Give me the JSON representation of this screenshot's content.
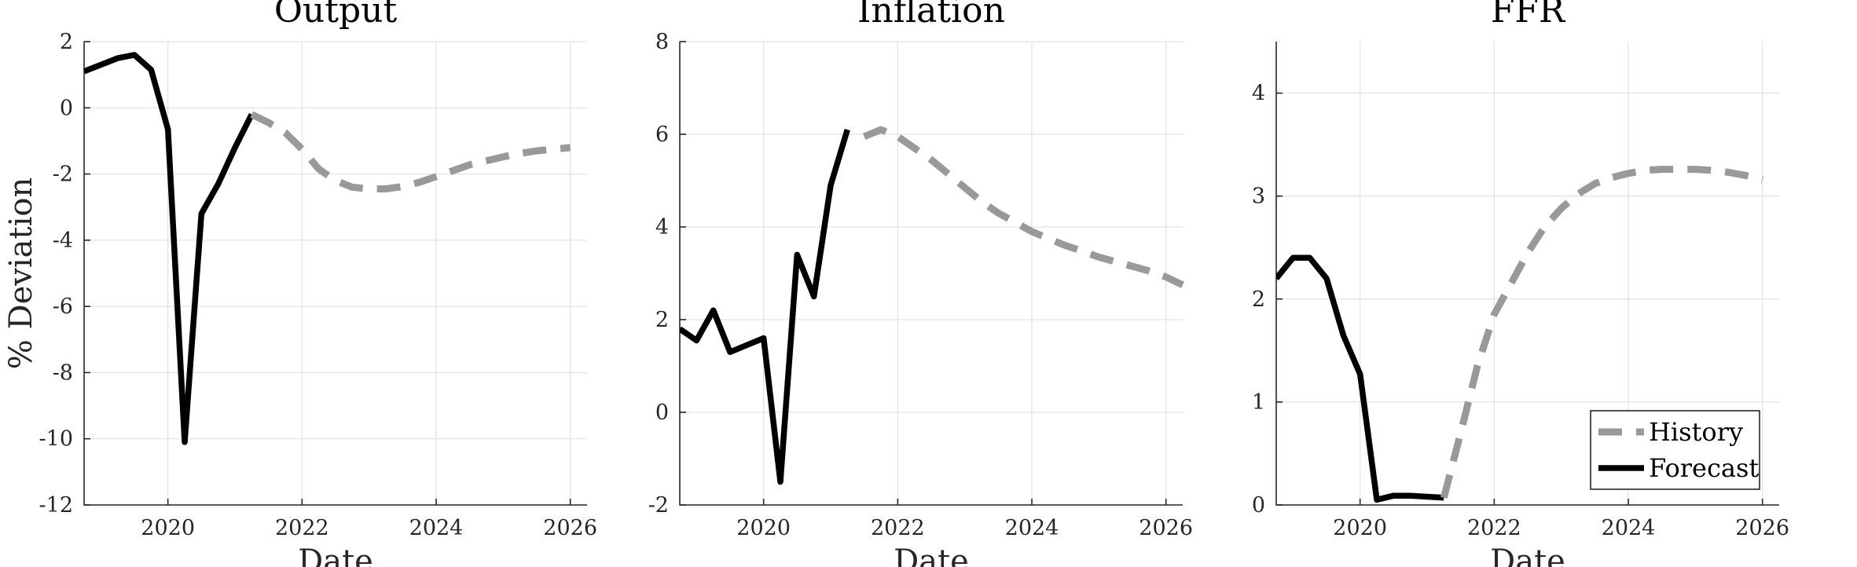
{
  "figure": {
    "ylabel": "% Deviation",
    "colors": {
      "history": "#999999",
      "forecast": "#000000",
      "grid": "#e3e3e3"
    },
    "legend": {
      "placement": "bottom-right of third panel",
      "entries": [
        {
          "key": "history",
          "label": "History"
        },
        {
          "key": "forecast",
          "label": "Forecast"
        }
      ]
    }
  },
  "chart_data": [
    {
      "type": "line",
      "title": "Output",
      "xlabel": "Date",
      "xlim": [
        2018.75,
        2026.25
      ],
      "ylim": [
        -12,
        2
      ],
      "xticks": [
        2020,
        2022,
        2024,
        2026
      ],
      "yticks": [
        -12,
        -10,
        -8,
        -6,
        -4,
        -2,
        0,
        2
      ],
      "grid": true,
      "series": [
        {
          "key": "forecast",
          "x": [
            2018.75,
            2019.0,
            2019.25,
            2019.5,
            2019.75,
            2020.0,
            2020.25,
            2020.5,
            2020.75,
            2021.0,
            2021.25
          ],
          "y": [
            1.1,
            1.3,
            1.5,
            1.6,
            1.15,
            -0.65,
            -10.1,
            -3.2,
            -2.3,
            -1.2,
            -0.2
          ]
        },
        {
          "key": "history",
          "x": [
            2021.25,
            2021.5,
            2021.75,
            2022.0,
            2022.25,
            2022.5,
            2022.75,
            2023.0,
            2023.25,
            2023.5,
            2023.75,
            2024.0,
            2024.25,
            2024.5,
            2024.75,
            2025.0,
            2025.25,
            2025.5,
            2025.75,
            2026.0
          ],
          "y": [
            -0.2,
            -0.45,
            -0.75,
            -1.25,
            -1.85,
            -2.2,
            -2.4,
            -2.45,
            -2.45,
            -2.38,
            -2.25,
            -2.08,
            -1.9,
            -1.72,
            -1.6,
            -1.48,
            -1.38,
            -1.3,
            -1.25,
            -1.2
          ]
        }
      ]
    },
    {
      "type": "line",
      "title": "Inflation",
      "xlabel": "Date",
      "xlim": [
        2018.75,
        2026.25
      ],
      "ylim": [
        -2,
        8
      ],
      "xticks": [
        2020,
        2022,
        2024,
        2026
      ],
      "yticks": [
        -2,
        0,
        2,
        4,
        6,
        8
      ],
      "grid": true,
      "series": [
        {
          "key": "forecast",
          "x": [
            2018.75,
            2019.0,
            2019.25,
            2019.5,
            2019.75,
            2020.0,
            2020.25,
            2020.5,
            2020.75,
            2021.0,
            2021.25
          ],
          "y": [
            1.8,
            1.55,
            2.2,
            1.3,
            1.45,
            1.6,
            -1.5,
            3.4,
            2.5,
            4.9,
            6.1
          ]
        },
        {
          "key": "history",
          "x": [
            2021.5,
            2021.75,
            2022.0,
            2022.25,
            2022.5,
            2022.75,
            2023.0,
            2023.25,
            2023.5,
            2023.75,
            2024.0,
            2024.25,
            2024.5,
            2024.75,
            2025.0,
            2025.25,
            2025.5,
            2025.75,
            2026.0,
            2026.25
          ],
          "y": [
            5.95,
            6.1,
            5.95,
            5.7,
            5.45,
            5.15,
            4.85,
            4.55,
            4.3,
            4.1,
            3.9,
            3.75,
            3.6,
            3.48,
            3.35,
            3.25,
            3.15,
            3.05,
            2.92,
            2.75
          ]
        }
      ]
    },
    {
      "type": "line",
      "title": "FFR",
      "xlabel": "Date",
      "xlim": [
        2018.75,
        2026.25
      ],
      "ylim": [
        0,
        4.5
      ],
      "xticks": [
        2020,
        2022,
        2024,
        2026
      ],
      "yticks": [
        0,
        1,
        2,
        3,
        4
      ],
      "grid": true,
      "series": [
        {
          "key": "forecast",
          "x": [
            2018.75,
            2019.0,
            2019.25,
            2019.5,
            2019.75,
            2020.0,
            2020.25,
            2020.5,
            2020.75,
            2021.0,
            2021.25
          ],
          "y": [
            2.2,
            2.4,
            2.4,
            2.2,
            1.65,
            1.27,
            0.05,
            0.09,
            0.09,
            0.08,
            0.07
          ]
        },
        {
          "key": "history",
          "x": [
            2021.25,
            2021.5,
            2021.75,
            2022.0,
            2022.25,
            2022.5,
            2022.75,
            2023.0,
            2023.25,
            2023.5,
            2023.75,
            2024.0,
            2024.25,
            2024.5,
            2024.75,
            2025.0,
            2025.25,
            2025.5,
            2025.75,
            2026.0
          ],
          "y": [
            0.07,
            0.7,
            1.35,
            1.85,
            2.15,
            2.45,
            2.7,
            2.88,
            3.02,
            3.12,
            3.18,
            3.22,
            3.25,
            3.26,
            3.26,
            3.26,
            3.25,
            3.23,
            3.2,
            3.16
          ]
        }
      ]
    }
  ]
}
